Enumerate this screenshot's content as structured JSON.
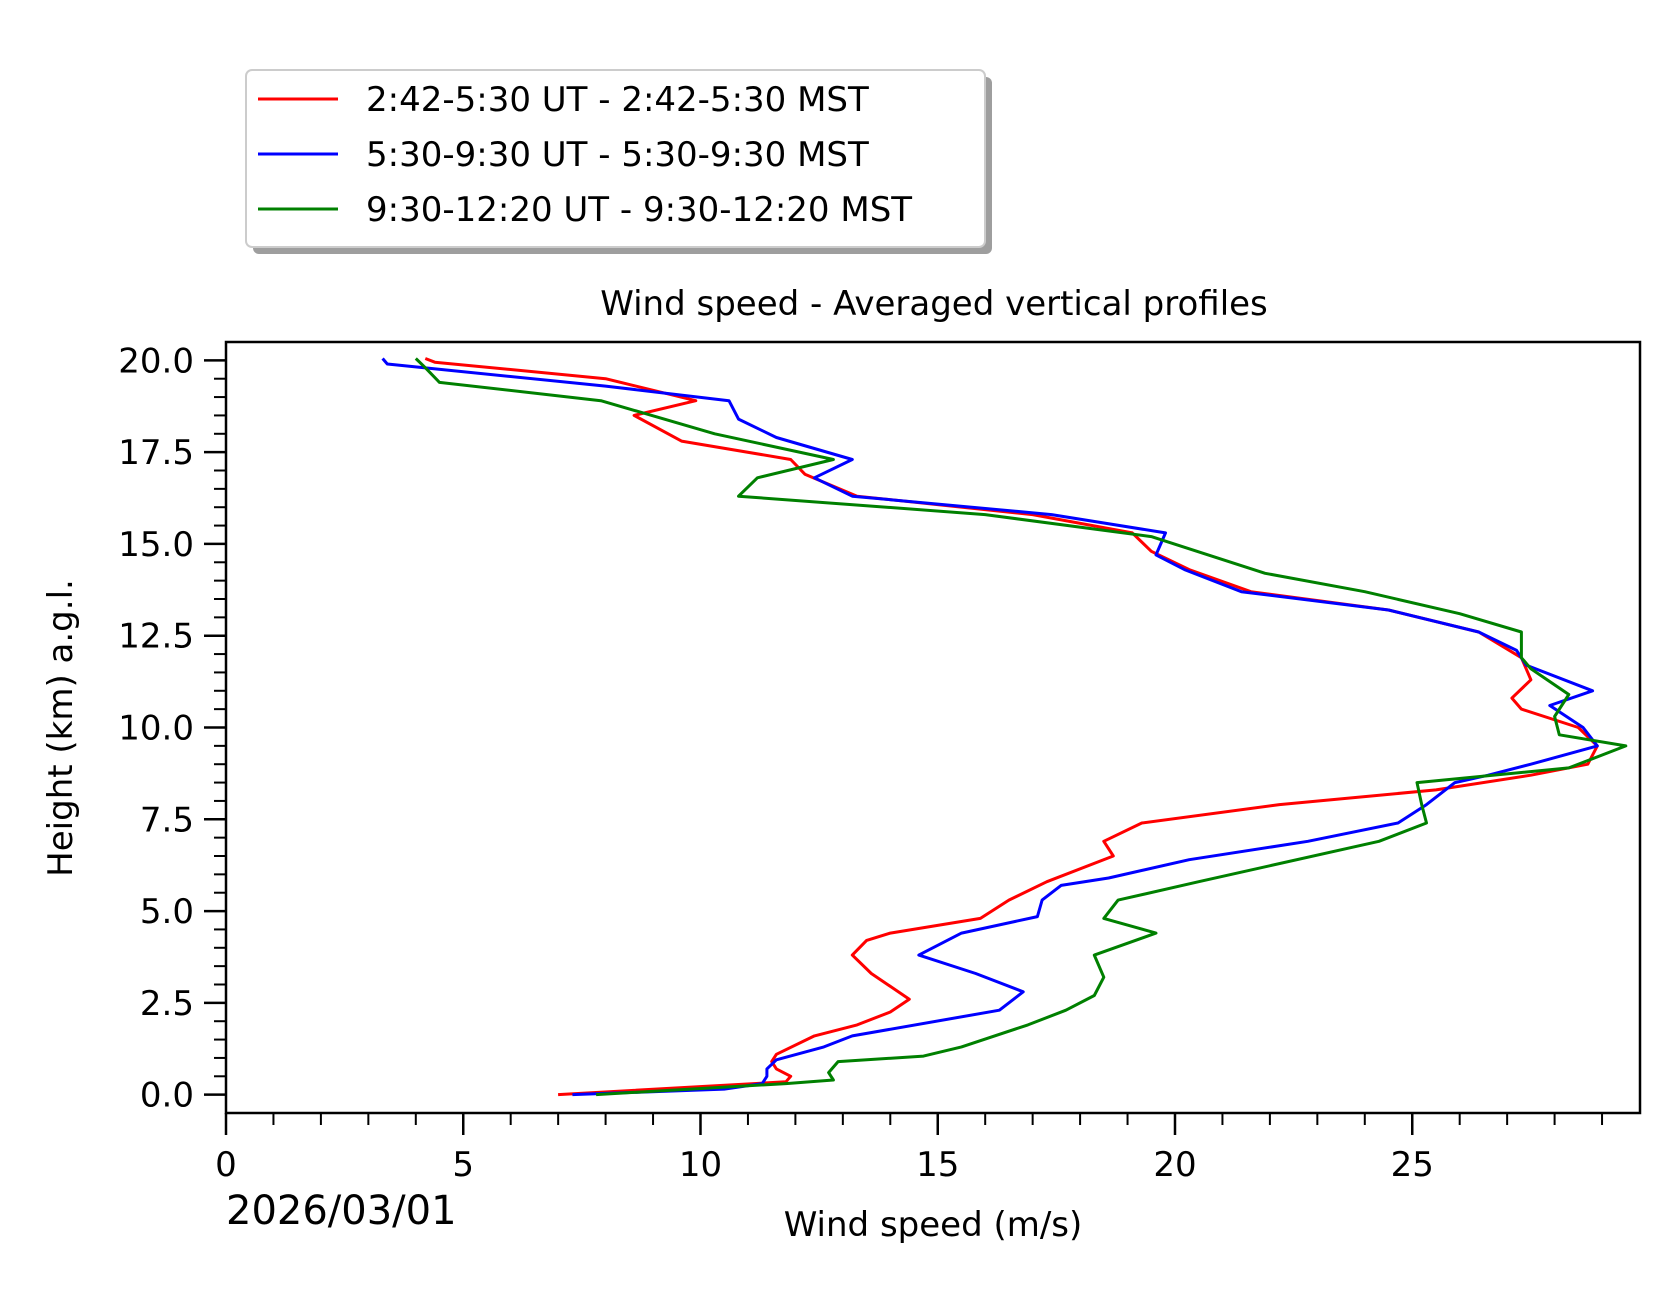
{
  "chart_data": {
    "type": "line",
    "title": "Wind speed - Averaged vertical profiles",
    "xlabel": "Wind speed (m/s)",
    "ylabel": "Height (km) a.g.l.",
    "date_label": "2026/03/01",
    "xlim": [
      0,
      29.8
    ],
    "ylim": [
      -0.5,
      20.5
    ],
    "x_ticks": [
      0,
      5,
      10,
      15,
      20,
      25
    ],
    "x_tick_labels": [
      "0",
      "5",
      "10",
      "15",
      "20",
      "25"
    ],
    "y_ticks": [
      0,
      2.5,
      5,
      7.5,
      10,
      12.5,
      15,
      17.5,
      20
    ],
    "y_tick_labels": [
      "0.0",
      "2.5",
      "5.0",
      "7.5",
      "10.0",
      "12.5",
      "15.0",
      "17.5",
      "20.0"
    ],
    "grid": false,
    "legend_position": "top-left, above plot",
    "series": [
      {
        "name": "2:42-5:30 UT - 2:42-5:30 MST",
        "color": "#ff0000",
        "points": [
          [
            7.0,
            0.0
          ],
          [
            11.8,
            0.35
          ],
          [
            11.9,
            0.5
          ],
          [
            11.6,
            0.7
          ],
          [
            11.5,
            0.9
          ],
          [
            11.6,
            1.1
          ],
          [
            12.4,
            1.6
          ],
          [
            13.3,
            1.9
          ],
          [
            14.0,
            2.25
          ],
          [
            14.4,
            2.6
          ],
          [
            13.6,
            3.3
          ],
          [
            13.2,
            3.8
          ],
          [
            13.5,
            4.2
          ],
          [
            14.0,
            4.4
          ],
          [
            15.9,
            4.8
          ],
          [
            16.5,
            5.3
          ],
          [
            17.3,
            5.8
          ],
          [
            18.7,
            6.5
          ],
          [
            18.5,
            6.9
          ],
          [
            19.3,
            7.4
          ],
          [
            22.2,
            7.9
          ],
          [
            25.5,
            8.3
          ],
          [
            27.5,
            8.7
          ],
          [
            28.7,
            9.0
          ],
          [
            28.9,
            9.5
          ],
          [
            28.5,
            10.0
          ],
          [
            27.3,
            10.5
          ],
          [
            27.1,
            10.8
          ],
          [
            27.5,
            11.3
          ],
          [
            27.3,
            11.9
          ],
          [
            26.4,
            12.6
          ],
          [
            24.5,
            13.2
          ],
          [
            21.6,
            13.7
          ],
          [
            20.3,
            14.3
          ],
          [
            19.5,
            14.8
          ],
          [
            19.1,
            15.3
          ],
          [
            17.0,
            15.8
          ],
          [
            13.3,
            16.3
          ],
          [
            12.2,
            16.9
          ],
          [
            11.9,
            17.3
          ],
          [
            9.6,
            17.8
          ],
          [
            8.6,
            18.5
          ],
          [
            9.9,
            18.9
          ],
          [
            8.0,
            19.5
          ],
          [
            4.4,
            19.95
          ],
          [
            4.2,
            20.05
          ]
        ]
      },
      {
        "name": "5:30-9:30 UT - 5:30-9:30 MST",
        "color": "#0000ff",
        "points": [
          [
            7.3,
            0.0
          ],
          [
            10.5,
            0.15
          ],
          [
            11.3,
            0.3
          ],
          [
            11.4,
            0.5
          ],
          [
            11.4,
            0.7
          ],
          [
            11.6,
            0.95
          ],
          [
            12.6,
            1.3
          ],
          [
            13.2,
            1.6
          ],
          [
            16.3,
            2.3
          ],
          [
            16.8,
            2.8
          ],
          [
            15.8,
            3.3
          ],
          [
            14.6,
            3.8
          ],
          [
            15.5,
            4.4
          ],
          [
            17.1,
            4.85
          ],
          [
            17.2,
            5.3
          ],
          [
            17.6,
            5.7
          ],
          [
            18.6,
            5.9
          ],
          [
            20.3,
            6.4
          ],
          [
            22.8,
            6.9
          ],
          [
            24.7,
            7.4
          ],
          [
            25.3,
            7.9
          ],
          [
            25.9,
            8.5
          ],
          [
            26.6,
            8.7
          ],
          [
            27.5,
            9.0
          ],
          [
            28.9,
            9.5
          ],
          [
            28.6,
            10.0
          ],
          [
            27.9,
            10.6
          ],
          [
            28.8,
            11.0
          ],
          [
            27.4,
            11.7
          ],
          [
            27.2,
            12.1
          ],
          [
            26.4,
            12.6
          ],
          [
            24.5,
            13.2
          ],
          [
            21.4,
            13.7
          ],
          [
            20.2,
            14.3
          ],
          [
            19.6,
            14.7
          ],
          [
            19.8,
            15.3
          ],
          [
            17.4,
            15.8
          ],
          [
            13.2,
            16.3
          ],
          [
            12.4,
            16.8
          ],
          [
            13.2,
            17.3
          ],
          [
            11.6,
            17.9
          ],
          [
            10.8,
            18.4
          ],
          [
            10.6,
            18.9
          ],
          [
            8.0,
            19.3
          ],
          [
            3.4,
            19.9
          ],
          [
            3.3,
            20.05
          ]
        ]
      },
      {
        "name": "9:30-12:20 UT - 9:30-12:20 MST",
        "color": "#008000",
        "points": [
          [
            7.8,
            0.0
          ],
          [
            11.8,
            0.3
          ],
          [
            12.8,
            0.4
          ],
          [
            12.7,
            0.6
          ],
          [
            12.9,
            0.9
          ],
          [
            14.7,
            1.05
          ],
          [
            15.5,
            1.3
          ],
          [
            16.9,
            1.9
          ],
          [
            17.7,
            2.3
          ],
          [
            18.3,
            2.7
          ],
          [
            18.5,
            3.2
          ],
          [
            18.3,
            3.8
          ],
          [
            19.6,
            4.4
          ],
          [
            18.5,
            4.8
          ],
          [
            18.8,
            5.3
          ],
          [
            20.5,
            5.8
          ],
          [
            24.3,
            6.9
          ],
          [
            25.3,
            7.4
          ],
          [
            25.2,
            7.9
          ],
          [
            25.1,
            8.5
          ],
          [
            28.3,
            8.9
          ],
          [
            29.5,
            9.5
          ],
          [
            28.1,
            9.8
          ],
          [
            28.0,
            10.3
          ],
          [
            28.3,
            10.9
          ],
          [
            27.5,
            11.6
          ],
          [
            27.3,
            11.9
          ],
          [
            27.3,
            12.6
          ],
          [
            26.0,
            13.1
          ],
          [
            24.0,
            13.7
          ],
          [
            21.9,
            14.2
          ],
          [
            19.5,
            15.2
          ],
          [
            16.0,
            15.8
          ],
          [
            10.8,
            16.3
          ],
          [
            11.2,
            16.8
          ],
          [
            12.8,
            17.3
          ],
          [
            10.3,
            18.0
          ],
          [
            7.9,
            18.9
          ],
          [
            4.5,
            19.4
          ],
          [
            4.2,
            19.8
          ],
          [
            4.0,
            20.05
          ]
        ]
      }
    ]
  }
}
